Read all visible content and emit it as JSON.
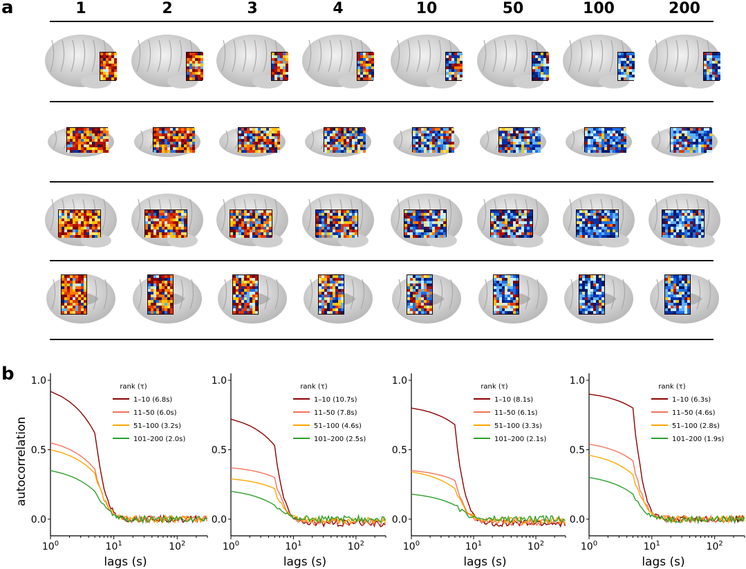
{
  "panel_a_label": "a",
  "panel_b_label": "b",
  "component_ranks": [
    "1",
    "2",
    "3",
    "4",
    "10",
    "50",
    "100",
    "200"
  ],
  "brain_views": [
    "lateral-occipital",
    "ventral",
    "lateral-temporal",
    "medial"
  ],
  "colors": {
    "c1": "#8b0000",
    "c2": "#f4725a",
    "c3": "#ffa500",
    "c4": "#2ca02c"
  },
  "chart_data": [
    {
      "type": "line",
      "xscale": "log",
      "xlim": [
        1,
        300
      ],
      "ylim": [
        -0.12,
        1.05
      ],
      "xlabel": "lags (s)",
      "ylabel": "autocorrelation",
      "yticks": [
        "0.0",
        "0.5",
        "1.0"
      ],
      "xticks": [
        "10^0",
        "10^1",
        "10^2"
      ],
      "legend_title": "rank (τ)",
      "series": [
        {
          "name": "1–10 (6.8s)",
          "y0": 0.92,
          "lag1": 0.62,
          "tail": 0.0
        },
        {
          "name": "11–50 (6.0s)",
          "y0": 0.55,
          "lag1": 0.36,
          "tail": 0.0
        },
        {
          "name": "51–100 (3.2s)",
          "y0": 0.5,
          "lag1": 0.33,
          "tail": 0.0
        },
        {
          "name": "101–200 (2.0s)",
          "y0": 0.35,
          "lag1": 0.2,
          "tail": 0.0
        }
      ]
    },
    {
      "type": "line",
      "xscale": "log",
      "xlim": [
        1,
        300
      ],
      "ylim": [
        -0.12,
        1.05
      ],
      "xlabel": "lags (s)",
      "ylabel": "",
      "yticks": [
        "0.0",
        "0.5",
        "1.0"
      ],
      "xticks": [
        "10^0",
        "10^1",
        "10^2"
      ],
      "legend_title": "rank (τ)",
      "series": [
        {
          "name": "1–10 (10.7s)",
          "y0": 0.72,
          "lag1": 0.53,
          "tail": -0.03
        },
        {
          "name": "11–50 (7.8s)",
          "y0": 0.37,
          "lag1": 0.3,
          "tail": -0.02
        },
        {
          "name": "51–100 (4.6s)",
          "y0": 0.29,
          "lag1": 0.22,
          "tail": -0.01
        },
        {
          "name": "101–200 (2.5s)",
          "y0": 0.2,
          "lag1": 0.1,
          "tail": 0.0
        }
      ]
    },
    {
      "type": "line",
      "xscale": "log",
      "xlim": [
        1,
        300
      ],
      "ylim": [
        -0.12,
        1.05
      ],
      "xlabel": "lags (s)",
      "ylabel": "",
      "yticks": [
        "0.0",
        "0.5",
        "1.0"
      ],
      "xticks": [
        "10^0",
        "10^1",
        "10^2"
      ],
      "legend_title": "rank (τ)",
      "series": [
        {
          "name": "1–10 (8.1s)",
          "y0": 0.8,
          "lag1": 0.68,
          "tail": -0.03
        },
        {
          "name": "11–50 (6.1s)",
          "y0": 0.35,
          "lag1": 0.28,
          "tail": -0.02
        },
        {
          "name": "51–100 (3.3s)",
          "y0": 0.34,
          "lag1": 0.22,
          "tail": -0.01
        },
        {
          "name": "101–200 (2.1s)",
          "y0": 0.18,
          "lag1": 0.1,
          "tail": 0.0
        }
      ]
    },
    {
      "type": "line",
      "xscale": "log",
      "xlim": [
        1,
        300
      ],
      "ylim": [
        -0.12,
        1.05
      ],
      "xlabel": "lags (s)",
      "ylabel": "",
      "yticks": [
        "0.0",
        "0.5",
        "1.0"
      ],
      "xticks": [
        "10^0",
        "10^1",
        "10^2"
      ],
      "legend_title": "rank (τ)",
      "series": [
        {
          "name": "1–10 (6.3s)",
          "y0": 0.9,
          "lag1": 0.8,
          "tail": 0.0
        },
        {
          "name": "11–50 (4.6s)",
          "y0": 0.54,
          "lag1": 0.42,
          "tail": 0.0
        },
        {
          "name": "51–100 (2.8s)",
          "y0": 0.46,
          "lag1": 0.32,
          "tail": 0.0
        },
        {
          "name": "101–200 (1.9s)",
          "y0": 0.3,
          "lag1": 0.18,
          "tail": 0.0
        }
      ]
    }
  ]
}
